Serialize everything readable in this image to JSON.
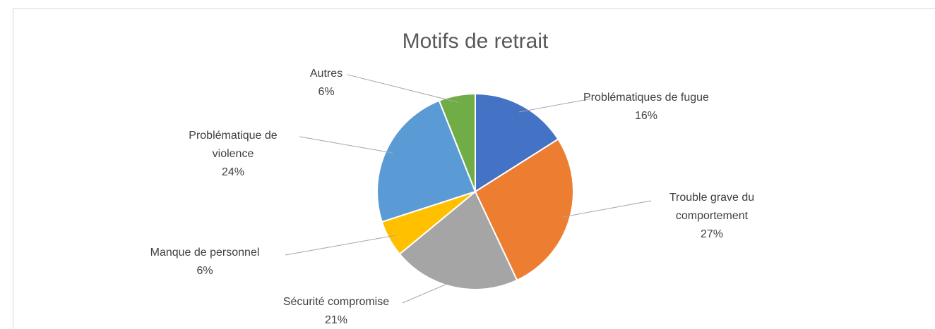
{
  "chart_data": {
    "type": "pie",
    "title": "Motifs de retrait",
    "categories": [
      "Problématiques de fugue",
      "Trouble grave du comportement",
      "Sécurité compromise",
      "Manque de personnel",
      "Problématique de violence",
      "Autres"
    ],
    "values": [
      16,
      27,
      21,
      6,
      24,
      6
    ],
    "value_labels": [
      "16%",
      "27%",
      "21%",
      "6%",
      "24%",
      "6%"
    ],
    "colors": [
      "#4472c4",
      "#ed7d31",
      "#a5a5a5",
      "#ffc000",
      "#5b9bd5",
      "#70ad47"
    ]
  }
}
